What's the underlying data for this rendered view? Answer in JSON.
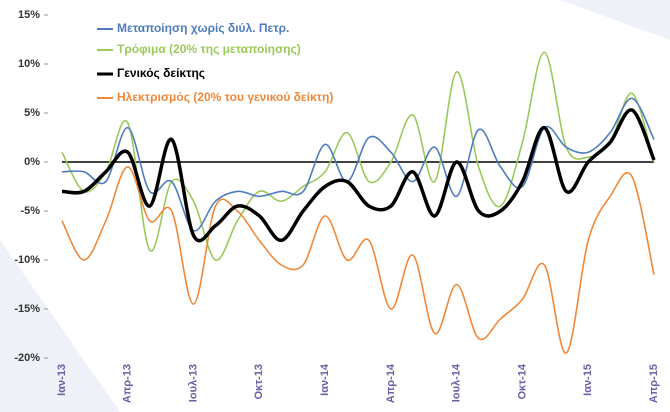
{
  "chart_data": {
    "type": "line",
    "categories": [
      "Ιαν-13",
      null,
      null,
      "Απρ-13",
      null,
      null,
      "Ιουλ-13",
      null,
      null,
      "Οκτ-13",
      null,
      null,
      "Ιαν-14",
      null,
      null,
      "Απρ-14",
      null,
      null,
      "Ιουλ-14",
      null,
      null,
      "Οκτ-14",
      null,
      null,
      "Ιαν-15",
      null,
      null,
      "Απρ-15"
    ],
    "series": [
      {
        "name": "Μεταποίηση χωρίς διύλ. Πετρ.",
        "color": "#4f7cbf",
        "values": [
          -1,
          -1,
          -2,
          3.5,
          -3,
          -2,
          -7,
          -4,
          -3,
          -3.5,
          -3,
          -3,
          1.8,
          -2,
          2.5,
          1,
          -2,
          1.5,
          -3.5,
          3.3,
          -0.5,
          -2.5,
          3.5,
          1.5,
          1,
          3,
          6.5,
          2.3
        ]
      },
      {
        "name": "Τρόφιμα (20% της μεταποίησης)",
        "color": "#9bc95a",
        "values": [
          1,
          -3,
          -1,
          4,
          -9,
          -2,
          -4,
          -10,
          -6,
          -3,
          -4,
          -2.5,
          -1,
          3,
          -2,
          0,
          4.8,
          -2,
          9.2,
          -0.5,
          -4.5,
          2,
          11.2,
          1.5,
          0.5,
          2,
          7,
          0
        ]
      },
      {
        "name": "Γενικός δείκτης",
        "color": "#000000",
        "values": [
          -3,
          -3,
          -1,
          1,
          -4.5,
          2.3,
          -7.5,
          -6.5,
          -4.5,
          -5.5,
          -8,
          -5,
          -2.5,
          -2,
          -4.5,
          -4.5,
          -1,
          -5.5,
          0,
          -5,
          -5,
          -2,
          3.5,
          -3,
          0,
          2,
          5.3,
          0.2
        ]
      },
      {
        "name": "Ηλεκτρισμός (20% του γενικού δείκτη)",
        "color": "#f0883a",
        "values": [
          -6,
          -10,
          -6,
          -0.5,
          -6,
          -5,
          -14.5,
          -4.5,
          -5,
          -8,
          -10.5,
          -10.5,
          -5.5,
          -10,
          -8,
          -15,
          -9.5,
          -17.5,
          -12.5,
          -18,
          -16,
          -14,
          -10.5,
          -19.5,
          -8,
          -3.5,
          -1.5,
          -11.5
        ]
      }
    ],
    "ylim": [
      -20,
      15
    ],
    "yticks": [
      {
        "value": -20,
        "label": "-20%"
      },
      {
        "value": -15,
        "label": "-15%"
      },
      {
        "value": -10,
        "label": "-10%"
      },
      {
        "value": -5,
        "label": "-5%"
      },
      {
        "value": 0,
        "label": "0%"
      },
      {
        "value": 5,
        "label": "5%"
      },
      {
        "value": 10,
        "label": "10%"
      },
      {
        "value": 15,
        "label": "15%"
      }
    ]
  }
}
